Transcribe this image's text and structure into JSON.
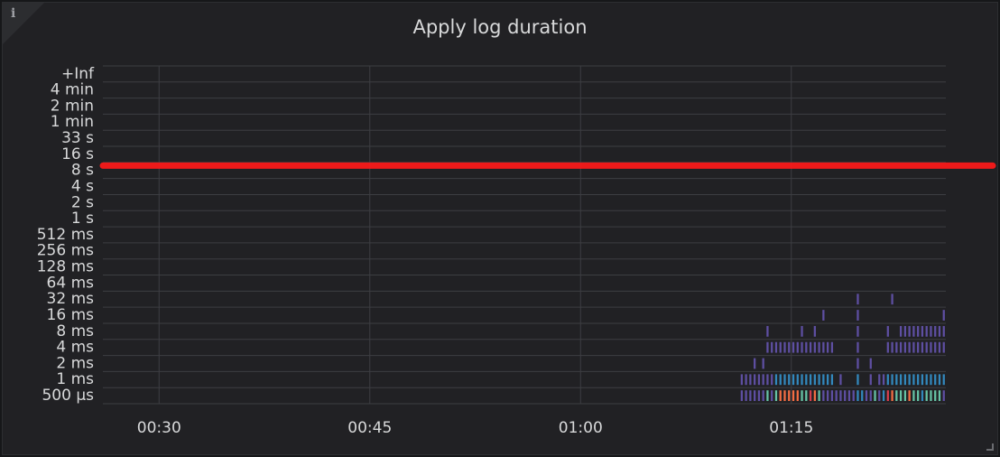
{
  "panel": {
    "title": "Apply log duration",
    "info_icon_label": "i"
  },
  "chart_data": {
    "type": "heatmap",
    "title": "Apply log duration",
    "y_buckets": [
      "500 µs",
      "1 ms",
      "2 ms",
      "4 ms",
      "8 ms",
      "16 ms",
      "32 ms",
      "64 ms",
      "128 ms",
      "256 ms",
      "512 ms",
      "1 s",
      "2 s",
      "4 s",
      "8 s",
      "16 s",
      "33 s",
      "1 min",
      "2 min",
      "4 min",
      "+Inf"
    ],
    "x_ticks": [
      "00:30",
      "00:45",
      "01:00",
      "01:15"
    ],
    "x_tick_minutes": [
      30,
      45,
      60,
      75
    ],
    "x_range_minutes": [
      26,
      86
    ],
    "grid": true,
    "cells": [
      {
        "bucket": "500 µs",
        "counts": [
          1,
          1,
          1,
          1,
          1,
          1,
          3,
          1,
          3,
          4,
          4,
          4,
          4,
          4,
          3,
          3,
          5,
          4,
          3,
          1,
          1,
          1,
          1,
          1,
          1,
          1,
          1,
          2,
          2,
          1,
          1,
          3,
          1,
          2,
          5,
          4,
          3,
          3,
          3,
          4,
          3,
          3,
          2,
          3,
          3,
          3,
          3,
          1
        ]
      },
      {
        "bucket": "1 ms",
        "counts": [
          1,
          1,
          1,
          1,
          1,
          1,
          1,
          1,
          2,
          2,
          2,
          2,
          2,
          2,
          2,
          2,
          2,
          2,
          2,
          2,
          2,
          2,
          0,
          1,
          0,
          0,
          0,
          2,
          0,
          0,
          1,
          0,
          1,
          1,
          2,
          2,
          2,
          2,
          2,
          2,
          2,
          2,
          2,
          2,
          2,
          2,
          2,
          2
        ]
      },
      {
        "bucket": "2 ms",
        "counts": [
          0,
          0,
          0,
          1,
          0,
          1,
          0,
          0,
          0,
          0,
          0,
          0,
          0,
          0,
          0,
          0,
          0,
          0,
          0,
          0,
          0,
          0,
          0,
          0,
          0,
          0,
          0,
          1,
          0,
          0,
          1,
          0,
          0,
          0,
          0,
          0,
          0,
          0,
          0,
          0,
          0,
          0,
          0,
          0,
          0,
          0,
          0,
          0
        ]
      },
      {
        "bucket": "4 ms",
        "counts": [
          0,
          0,
          0,
          0,
          0,
          0,
          1,
          1,
          1,
          1,
          1,
          1,
          1,
          1,
          1,
          1,
          1,
          1,
          1,
          1,
          1,
          1,
          0,
          0,
          0,
          0,
          0,
          1,
          0,
          0,
          0,
          0,
          0,
          0,
          1,
          1,
          1,
          1,
          1,
          1,
          1,
          1,
          1,
          1,
          1,
          1,
          1,
          1
        ]
      },
      {
        "bucket": "8 ms",
        "counts": [
          0,
          0,
          0,
          0,
          0,
          0,
          1,
          0,
          0,
          0,
          0,
          0,
          0,
          0,
          1,
          0,
          0,
          1,
          0,
          0,
          0,
          0,
          0,
          0,
          0,
          0,
          0,
          1,
          0,
          0,
          0,
          0,
          0,
          0,
          1,
          0,
          0,
          1,
          1,
          1,
          1,
          1,
          1,
          1,
          1,
          1,
          1,
          1
        ]
      },
      {
        "bucket": "16 ms",
        "counts": [
          0,
          0,
          0,
          0,
          0,
          0,
          0,
          0,
          0,
          0,
          0,
          0,
          0,
          0,
          0,
          0,
          0,
          0,
          0,
          1,
          0,
          0,
          0,
          0,
          0,
          0,
          0,
          1,
          0,
          0,
          0,
          0,
          0,
          0,
          0,
          0,
          0,
          0,
          0,
          0,
          0,
          0,
          0,
          0,
          0,
          0,
          0,
          1
        ]
      },
      {
        "bucket": "32 ms",
        "counts": [
          0,
          0,
          0,
          0,
          0,
          0,
          0,
          0,
          0,
          0,
          0,
          0,
          0,
          0,
          0,
          0,
          0,
          0,
          0,
          0,
          0,
          0,
          0,
          0,
          0,
          0,
          0,
          1,
          0,
          0,
          0,
          0,
          0,
          0,
          0,
          1,
          0,
          0,
          0,
          0,
          0,
          0,
          0,
          0,
          0,
          0,
          0,
          0
        ]
      }
    ],
    "cells_x_start_minutes": 71.4,
    "cells_x_step_minutes": 0.306,
    "color_scale": [
      "#5e4fa2",
      "#3288bd",
      "#66c2a5",
      "#f46d43",
      "#d53e4f",
      "#ffffbf"
    ],
    "annotation_line": {
      "bucket_position": 14.8,
      "color": "#ff1a1a"
    }
  }
}
